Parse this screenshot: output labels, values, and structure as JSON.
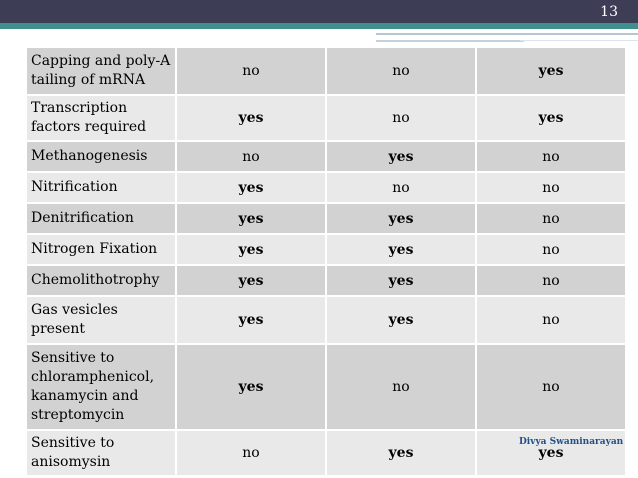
{
  "slide": {
    "page_number": "13",
    "watermark": "Divya Swaminarayan"
  },
  "table": {
    "rows": [
      {
        "label": "Capping and poly-A tailing of mRNA",
        "values": [
          "no",
          "no",
          "yes"
        ]
      },
      {
        "label": "Transcription factors required",
        "values": [
          "yes",
          "no",
          "yes"
        ]
      },
      {
        "label": "Methanogenesis",
        "values": [
          "no",
          "yes",
          "no"
        ]
      },
      {
        "label": "Nitrification",
        "values": [
          "yes",
          "no",
          "no"
        ]
      },
      {
        "label": "Denitrification",
        "values": [
          "yes",
          "yes",
          "no"
        ]
      },
      {
        "label": "Nitrogen Fixation",
        "values": [
          "yes",
          "yes",
          "no"
        ]
      },
      {
        "label": "Chemolithotrophy",
        "values": [
          "yes",
          "yes",
          "no"
        ]
      },
      {
        "label": "Gas vesicles present",
        "values": [
          "yes",
          "yes",
          "no"
        ]
      },
      {
        "label": "Sensitive to chloramphenicol, kanamycin and streptomycin",
        "values": [
          "yes",
          "no",
          "no"
        ]
      },
      {
        "label": "Sensitive to anisomysin",
        "values": [
          "no",
          "yes",
          "yes"
        ]
      }
    ]
  }
}
